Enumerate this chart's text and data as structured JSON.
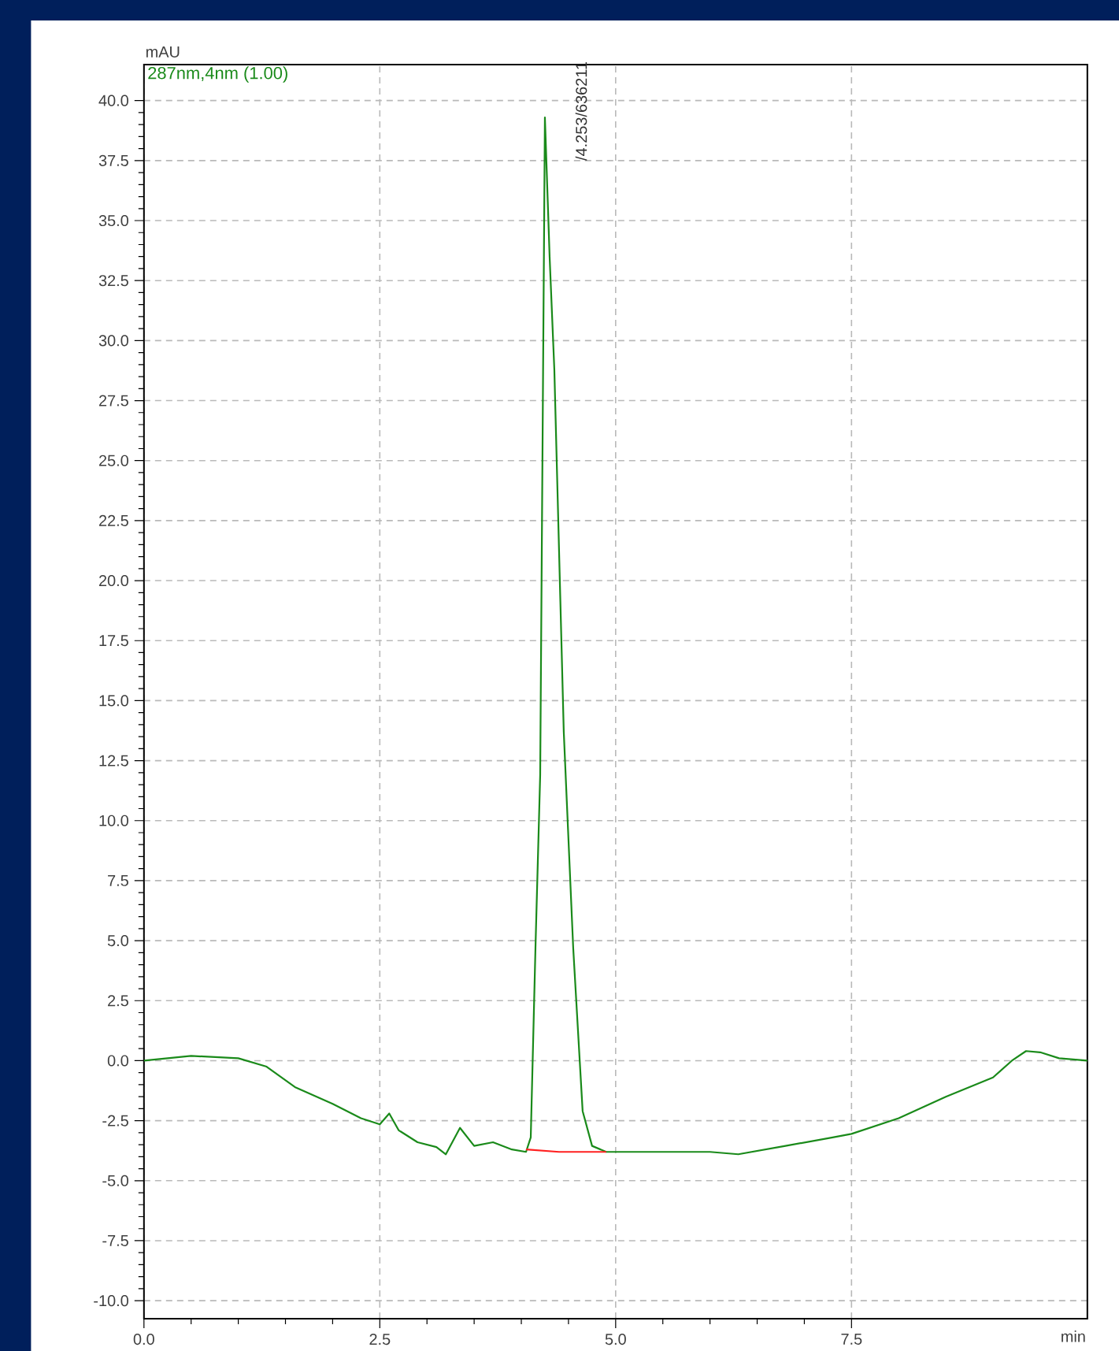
{
  "chart_data": {
    "type": "line",
    "xlabel": "min",
    "ylabel": "mAU",
    "legend": "top left",
    "grid": true,
    "line_style": "solid",
    "marker": "none",
    "xlim": [
      0,
      10
    ],
    "ylim": [
      -10.75,
      41.5
    ],
    "xticks": [
      {
        "value": 0,
        "label": "0.0"
      },
      {
        "value": 2.5,
        "label": "2.5"
      },
      {
        "value": 5,
        "label": "5.0"
      },
      {
        "value": 7.5,
        "label": "7.5"
      }
    ],
    "yticks": [
      {
        "value": -10,
        "label": "-10.0"
      },
      {
        "value": -7.5,
        "label": "-7.5"
      },
      {
        "value": -5,
        "label": "-5.0"
      },
      {
        "value": -2.5,
        "label": "-2.5"
      },
      {
        "value": 0,
        "label": "0.0"
      },
      {
        "value": 2.5,
        "label": "2.5"
      },
      {
        "value": 5,
        "label": "5.0"
      },
      {
        "value": 7.5,
        "label": "7.5"
      },
      {
        "value": 10,
        "label": "10.0"
      },
      {
        "value": 12.5,
        "label": "12.5"
      },
      {
        "value": 15,
        "label": "15.0"
      },
      {
        "value": 17.5,
        "label": "17.5"
      },
      {
        "value": 20,
        "label": "20.0"
      },
      {
        "value": 22.5,
        "label": "22.5"
      },
      {
        "value": 25,
        "label": "25.0"
      },
      {
        "value": 27.5,
        "label": "27.5"
      },
      {
        "value": 30,
        "label": "30.0"
      },
      {
        "value": 32.5,
        "label": "32.5"
      },
      {
        "value": 35,
        "label": "35.0"
      },
      {
        "value": 37.5,
        "label": "37.5"
      },
      {
        "value": 40,
        "label": "40.0"
      }
    ],
    "series": [
      {
        "name": "287nm,4nm (1.00)",
        "color": "#1a8a1a",
        "x": [
          0,
          0.5,
          1.0,
          1.3,
          1.6,
          2.0,
          2.3,
          2.5,
          2.6,
          2.7,
          2.9,
          3.1,
          3.2,
          3.35,
          3.5,
          3.7,
          3.9,
          4.05,
          4.1,
          4.15,
          4.2,
          4.25,
          4.3,
          4.35,
          4.45,
          4.55,
          4.65,
          4.75,
          4.9,
          5.0,
          6.0,
          6.3,
          6.8,
          7.3,
          7.5,
          8.0,
          8.5,
          9.0,
          9.2,
          9.35,
          9.5,
          9.7,
          10
        ],
        "values": [
          0,
          0.2,
          0.1,
          -0.25,
          -1.1,
          -1.8,
          -2.4,
          -2.65,
          -2.2,
          -2.9,
          -3.4,
          -3.6,
          -3.9,
          -2.8,
          -3.55,
          -3.4,
          -3.7,
          -3.8,
          -3.2,
          4.7,
          11.9,
          39.3,
          33.5,
          28.8,
          13.7,
          4.7,
          -2.1,
          -3.55,
          -3.8,
          -3.8,
          -3.8,
          -3.9,
          -3.55,
          -3.2,
          -3.05,
          -2.4,
          -1.5,
          -0.7,
          0,
          0.4,
          0.35,
          0.1,
          0
        ]
      },
      {
        "color": "#ff2020",
        "x": [
          4.05,
          4.4,
          4.9
        ],
        "values": [
          -3.7,
          -3.8,
          -3.8
        ]
      }
    ],
    "annotations": [
      {
        "text": "/4.253/636211",
        "x": 4.253,
        "y": 39.3
      }
    ]
  }
}
